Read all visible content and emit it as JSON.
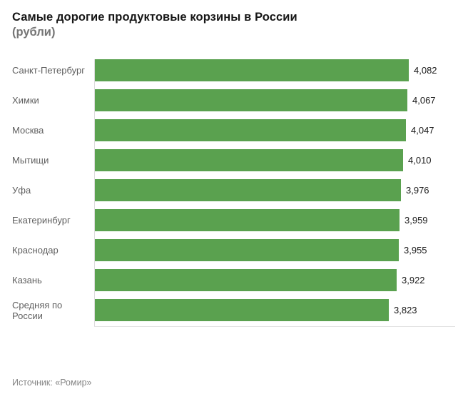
{
  "header": {
    "title": "Самые дорогие продуктовые корзины в России",
    "subtitle": "(рубли)"
  },
  "footer": {
    "source": "Источник: «Ромир»"
  },
  "colors": {
    "bar": "#5aa14f",
    "category_label": "#5f5f5f",
    "value_label": "#1a1a1a",
    "axis_line": "#dcdcdc",
    "title": "#161616",
    "subtitle": "#757575",
    "source": "#868686"
  },
  "chart_data": {
    "type": "bar",
    "orientation": "horizontal",
    "title": "Самые дорогие продуктовые корзины в России",
    "subtitle": "(рубли)",
    "categories": [
      "Санкт-Петербург",
      "Химки",
      "Москва",
      "Мытищи",
      "Уфа",
      "Екатеринбург",
      "Краснодар",
      "Казань",
      "Средняя по России"
    ],
    "values": [
      4082,
      4067,
      4047,
      4010,
      3976,
      3959,
      3955,
      3922,
      3823
    ],
    "value_labels": [
      "4,082",
      "4,067",
      "4,047",
      "4,010",
      "3,976",
      "3,959",
      "3,955",
      "3,922",
      "3,823"
    ],
    "xlabel": "",
    "ylabel": "",
    "xlim": [
      0,
      4082
    ],
    "grid": false,
    "legend": false,
    "source": "Источник: «Ромир»"
  }
}
